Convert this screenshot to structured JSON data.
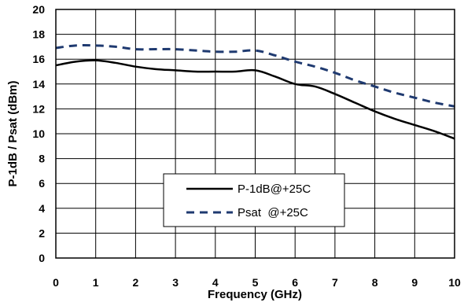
{
  "chart_data": {
    "type": "line",
    "xlabel": "Frequency (GHz)",
    "ylabel": "P-1dB / Psat (dBm)",
    "xlim": [
      0,
      10
    ],
    "ylim": [
      0,
      20
    ],
    "xticks": [
      "0",
      "1",
      "2",
      "3",
      "4",
      "5",
      "6",
      "7",
      "8",
      "9",
      "10"
    ],
    "yticks": [
      "0",
      "2",
      "4",
      "6",
      "8",
      "10",
      "12",
      "14",
      "16",
      "18",
      "20"
    ],
    "grid": true,
    "legend_position": "lower-center",
    "series": [
      {
        "name": "P-1dB@+25C",
        "style": "solid",
        "color": "#000000",
        "x": [
          0,
          0.5,
          1,
          1.5,
          2,
          2.5,
          3,
          3.5,
          4,
          4.5,
          5,
          5.5,
          6,
          6.5,
          7,
          7.5,
          8,
          8.5,
          9,
          9.5,
          10
        ],
        "y": [
          15.5,
          15.8,
          15.9,
          15.7,
          15.4,
          15.2,
          15.1,
          15.0,
          15.0,
          15.0,
          15.1,
          14.6,
          14.0,
          13.8,
          13.2,
          12.5,
          11.8,
          11.2,
          10.7,
          10.2,
          9.6
        ]
      },
      {
        "name": "Psat  @+25C",
        "style": "dashed",
        "color": "#1f3a70",
        "x": [
          0,
          0.5,
          1,
          1.5,
          2,
          2.5,
          3,
          3.5,
          4,
          4.5,
          5,
          5.5,
          6,
          6.5,
          7,
          7.5,
          8,
          8.5,
          9,
          9.5,
          10
        ],
        "y": [
          16.9,
          17.1,
          17.1,
          17.0,
          16.8,
          16.8,
          16.8,
          16.7,
          16.6,
          16.6,
          16.7,
          16.3,
          15.8,
          15.4,
          14.9,
          14.3,
          13.8,
          13.3,
          12.9,
          12.5,
          12.2
        ]
      }
    ]
  }
}
